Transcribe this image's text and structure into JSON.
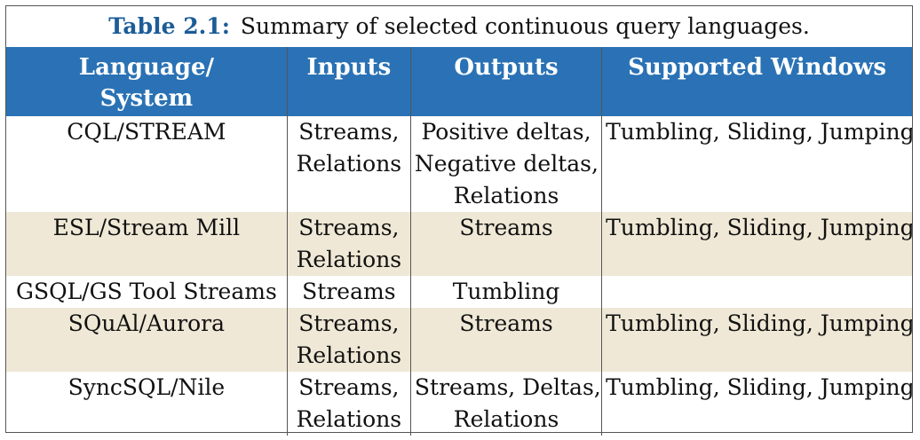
{
  "caption": {
    "label": "Table 2.1:",
    "text": "Summary of selected continuous query languages."
  },
  "header": {
    "language_line1": "Language/",
    "language_line2": "System",
    "inputs": "Inputs",
    "outputs": "Outputs",
    "windows": "Supported Windows"
  },
  "rows": [
    {
      "language": "CQL/STREAM",
      "inputs": [
        "Streams,",
        "Relations"
      ],
      "outputs": [
        "Positive deltas,",
        "Negative deltas,",
        "Relations"
      ],
      "windows": "Tumbling, Sliding, Jumping"
    },
    {
      "language": "ESL/Stream Mill",
      "inputs": [
        "Streams,",
        "Relations"
      ],
      "outputs": [
        "Streams"
      ],
      "windows": "Tumbling, Sliding, Jumping"
    },
    {
      "language": "GSQL/GS Tool Streams",
      "inputs": [
        "Streams"
      ],
      "outputs": [
        "Tumbling"
      ],
      "windows": ""
    },
    {
      "language": "SQuAl/Aurora",
      "inputs": [
        "Streams,",
        "Relations"
      ],
      "outputs": [
        "Streams"
      ],
      "windows": "Tumbling, Sliding, Jumping"
    },
    {
      "language": "SyncSQL/Nile",
      "inputs": [
        "Streams,",
        "Relations"
      ],
      "outputs": [
        "Streams, Deltas,",
        "Relations"
      ],
      "windows": "Tumbling, Sliding, Jumping"
    }
  ],
  "colors": {
    "header_bg": "#2a72b5",
    "caption_label": "#1b5c98",
    "shaded_row": "#efe8d6"
  }
}
